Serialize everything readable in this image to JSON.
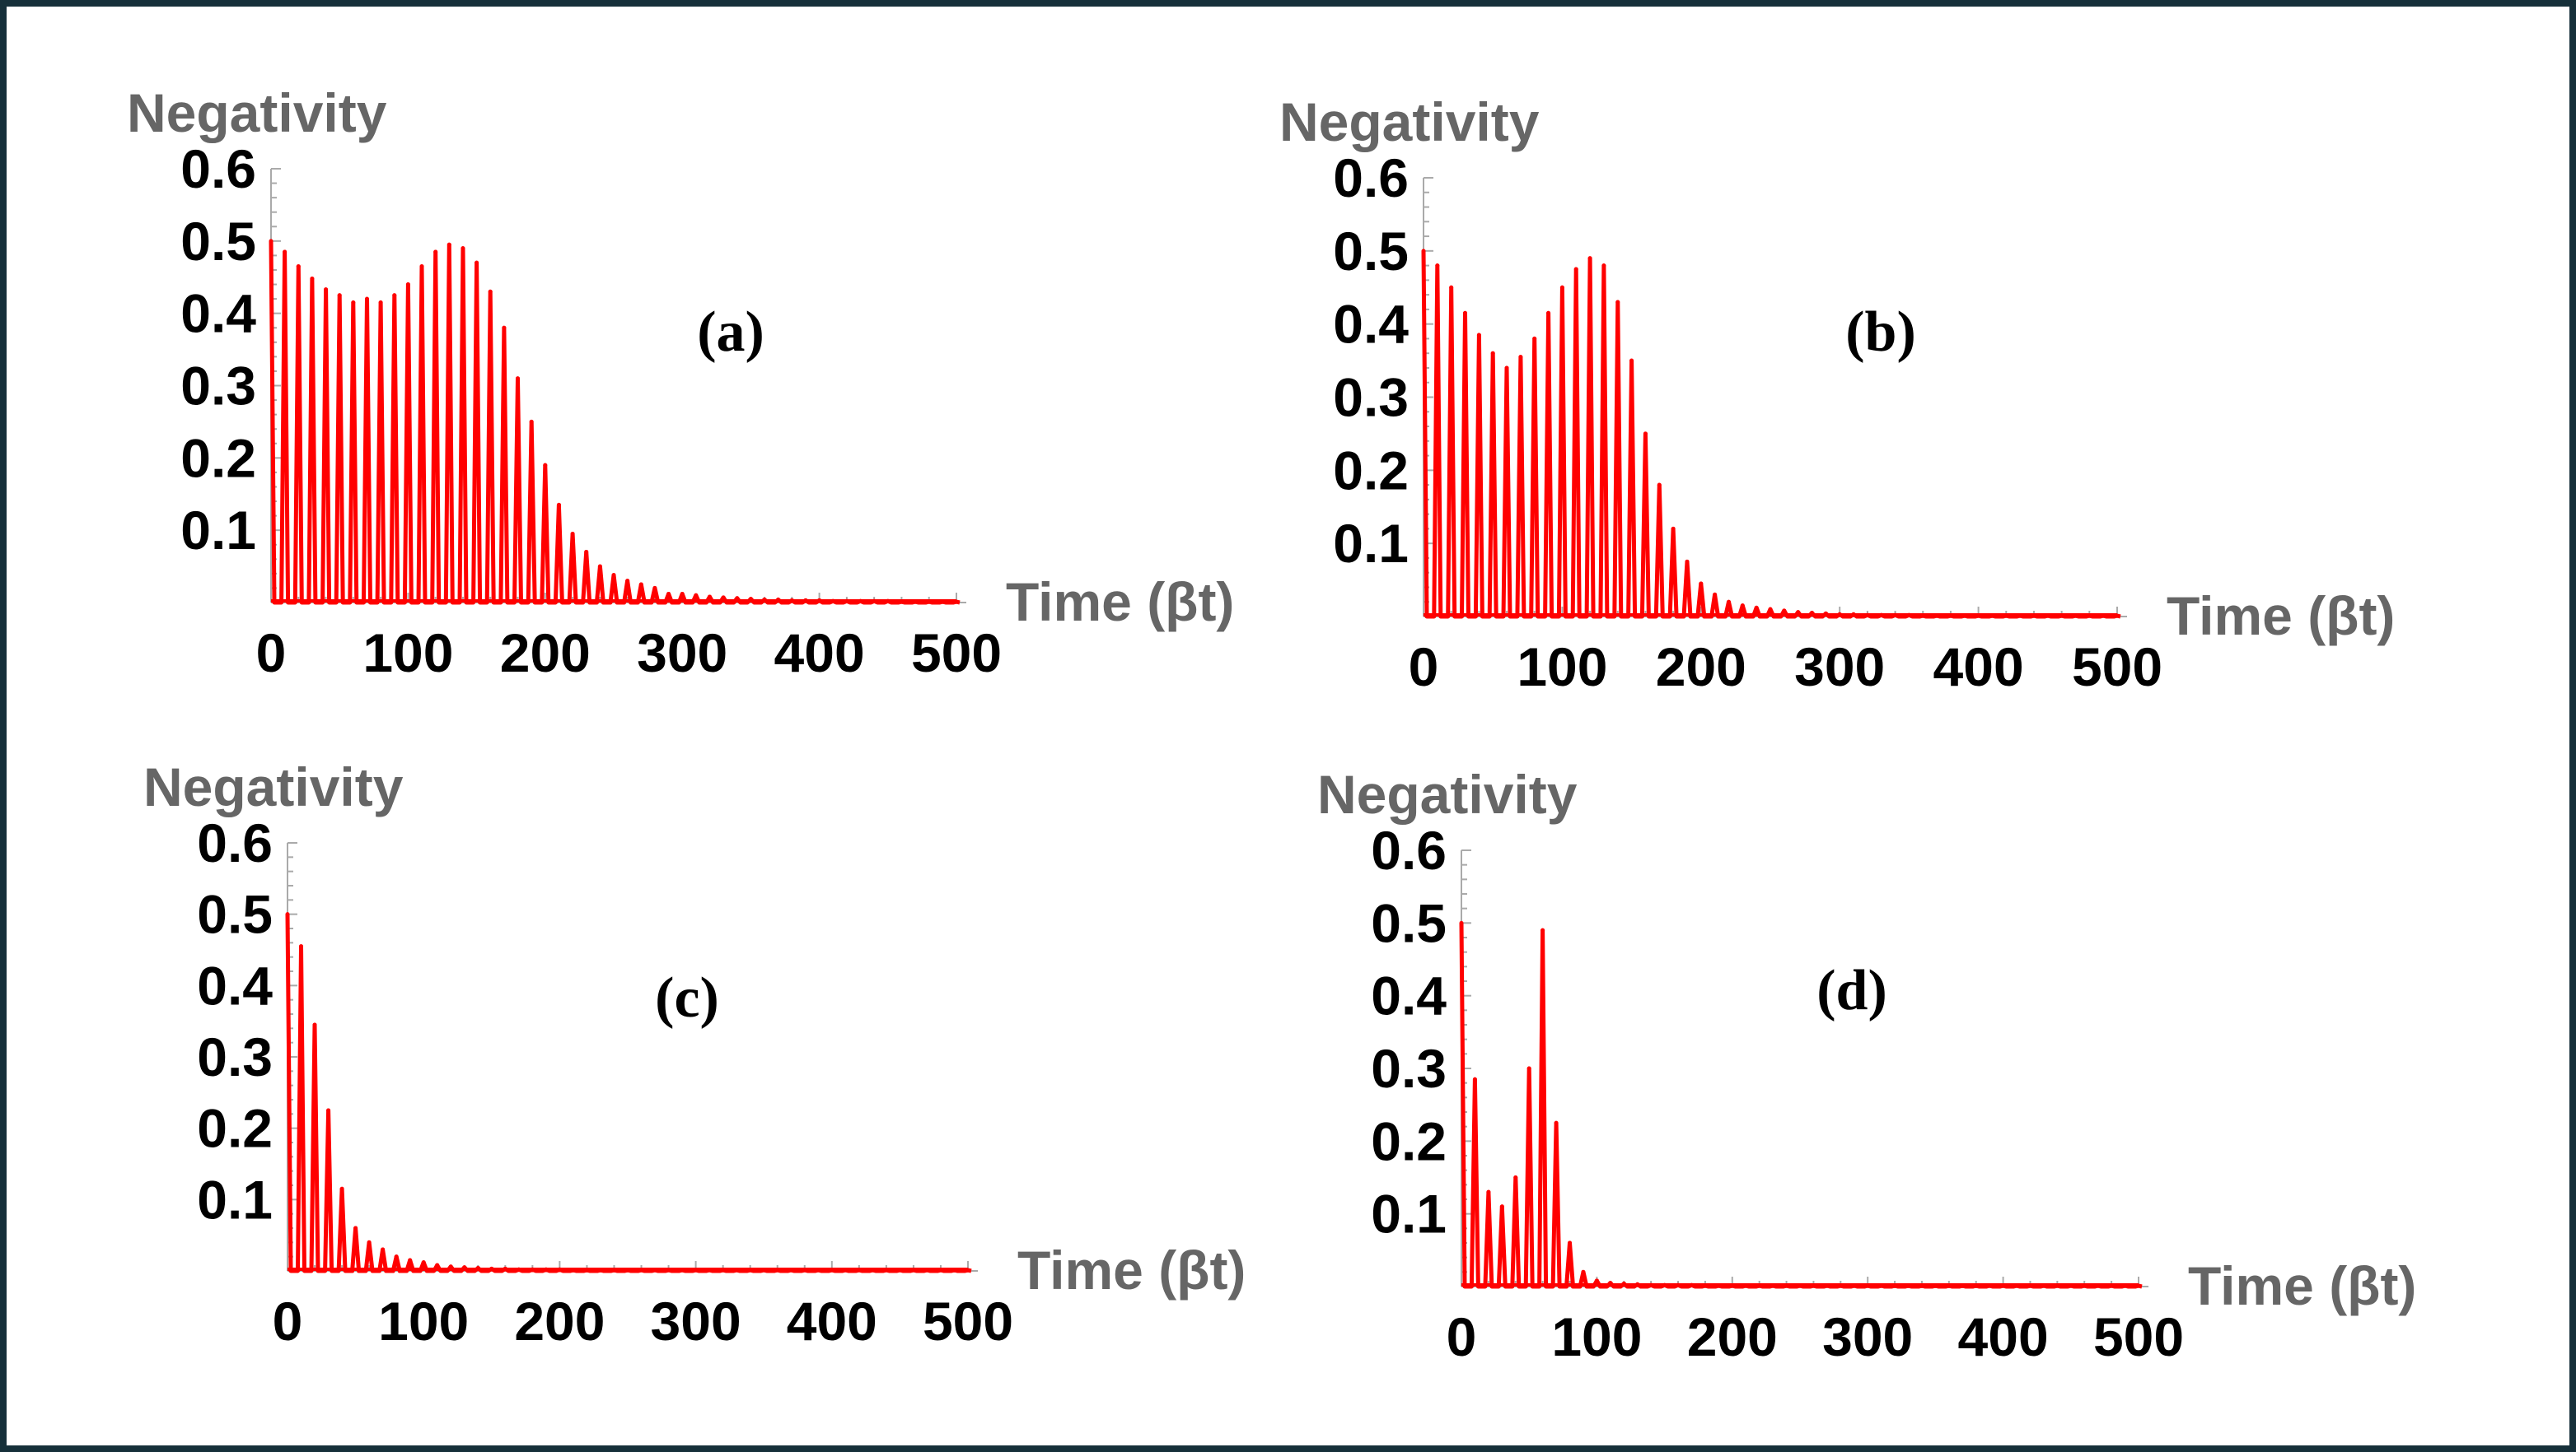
{
  "chart_data": [
    {
      "type": "line",
      "panel_label": "(a)",
      "ylabel": "Negativity",
      "xlabel": "Time (βt)",
      "xlim": [
        0,
        500
      ],
      "ylim": [
        0,
        0.6
      ],
      "xticks": [
        "0",
        "100",
        "200",
        "300",
        "400",
        "500"
      ],
      "yticks": [
        "0.1",
        "0.2",
        "0.3",
        "0.4",
        "0.5",
        "0.6"
      ],
      "grid": false,
      "color": "#ff0000",
      "series": [
        {
          "x": [
            0,
            10,
            20,
            30,
            40,
            50,
            60,
            70,
            80,
            90,
            100,
            110,
            120,
            130,
            140,
            150,
            160,
            170,
            180,
            190,
            200,
            210,
            220,
            230,
            240,
            250,
            260,
            270,
            280,
            290,
            300,
            310,
            320,
            330,
            340,
            350,
            360,
            370,
            380,
            390,
            400,
            410,
            420,
            430,
            440,
            450,
            460,
            470,
            480,
            490,
            500
          ],
          "y": [
            0.5,
            0.485,
            0.465,
            0.448,
            0.433,
            0.425,
            0.415,
            0.42,
            0.415,
            0.425,
            0.44,
            0.465,
            0.485,
            0.495,
            0.49,
            0.47,
            0.43,
            0.38,
            0.31,
            0.25,
            0.19,
            0.135,
            0.095,
            0.07,
            0.05,
            0.038,
            0.03,
            0.025,
            0.02,
            0.012,
            0.012,
            0.01,
            0.008,
            0.007,
            0.006,
            0.005,
            0.004,
            0.004,
            0.003,
            0.003,
            0.003,
            0.002,
            0.002,
            0.002,
            0.002,
            0.002,
            0.001,
            0.001,
            0.001,
            0.001,
            0.001
          ]
        }
      ]
    },
    {
      "type": "line",
      "panel_label": "(b)",
      "ylabel": "Negativity",
      "xlabel": "Time (βt)",
      "xlim": [
        0,
        500
      ],
      "ylim": [
        0,
        0.6
      ],
      "xticks": [
        "0",
        "100",
        "200",
        "300",
        "400",
        "500"
      ],
      "yticks": [
        "0.1",
        "0.2",
        "0.3",
        "0.4",
        "0.5",
        "0.6"
      ],
      "grid": false,
      "color": "#ff0000",
      "series": [
        {
          "x": [
            0,
            10,
            20,
            30,
            40,
            50,
            60,
            70,
            80,
            90,
            100,
            110,
            120,
            130,
            140,
            150,
            160,
            170,
            180,
            190,
            200,
            210,
            220,
            230,
            240,
            250,
            260,
            270,
            280,
            290,
            300,
            310,
            320,
            330,
            340,
            350,
            360,
            370,
            380,
            390,
            400,
            410,
            420,
            430,
            440,
            450,
            460,
            470,
            480,
            490,
            500
          ],
          "y": [
            0.5,
            0.48,
            0.45,
            0.415,
            0.385,
            0.36,
            0.34,
            0.355,
            0.38,
            0.415,
            0.45,
            0.475,
            0.49,
            0.48,
            0.43,
            0.35,
            0.25,
            0.18,
            0.12,
            0.075,
            0.045,
            0.03,
            0.02,
            0.015,
            0.012,
            0.01,
            0.008,
            0.006,
            0.005,
            0.004,
            0.003,
            0.003,
            0.002,
            0.002,
            0.002,
            0.002,
            0.001,
            0.001,
            0.001,
            0.001,
            0.001,
            0.001,
            0.001,
            0.001,
            0.001,
            0.001,
            0.001,
            0.001,
            0.001,
            0.001,
            0.001
          ]
        }
      ]
    },
    {
      "type": "line",
      "panel_label": "(c)",
      "ylabel": "Negativity",
      "xlabel": "Time (βt)",
      "xlim": [
        0,
        500
      ],
      "ylim": [
        0,
        0.6
      ],
      "xticks": [
        "0",
        "100",
        "200",
        "300",
        "400",
        "500"
      ],
      "yticks": [
        "0.1",
        "0.2",
        "0.3",
        "0.4",
        "0.5",
        "0.6"
      ],
      "grid": false,
      "color": "#ff0000",
      "series": [
        {
          "x": [
            0,
            10,
            20,
            30,
            40,
            50,
            60,
            70,
            80,
            90,
            100,
            110,
            120,
            130,
            140,
            150,
            160,
            170,
            180,
            190,
            200,
            210,
            220,
            230,
            240,
            250,
            260,
            270,
            280,
            290,
            300,
            310,
            320,
            330,
            340,
            350,
            360,
            370,
            380,
            390,
            400,
            410,
            420,
            430,
            440,
            450,
            460,
            470,
            480,
            490,
            500
          ],
          "y": [
            0.5,
            0.455,
            0.345,
            0.225,
            0.115,
            0.06,
            0.04,
            0.03,
            0.02,
            0.015,
            0.012,
            0.008,
            0.006,
            0.005,
            0.004,
            0.003,
            0.003,
            0.002,
            0.002,
            0.002,
            0.002,
            0.001,
            0.001,
            0.001,
            0.001,
            0.001,
            0.001,
            0.001,
            0.001,
            0.001,
            0.001,
            0.001,
            0.001,
            0.001,
            0.001,
            0.001,
            0.001,
            0.001,
            0.001,
            0.001,
            0.001,
            0.001,
            0.001,
            0.001,
            0.001,
            0.001,
            0.001,
            0.001,
            0.001,
            0.001,
            0.001
          ]
        }
      ]
    },
    {
      "type": "line",
      "panel_label": "(d)",
      "ylabel": "Negativity",
      "xlabel": "Time (βt)",
      "xlim": [
        0,
        500
      ],
      "ylim": [
        0,
        0.6
      ],
      "xticks": [
        "0",
        "100",
        "200",
        "300",
        "400",
        "500"
      ],
      "yticks": [
        "0.1",
        "0.2",
        "0.3",
        "0.4",
        "0.5",
        "0.6"
      ],
      "grid": false,
      "color": "#ff0000",
      "series": [
        {
          "x": [
            0,
            10,
            20,
            30,
            40,
            50,
            60,
            70,
            80,
            90,
            100,
            110,
            120,
            130,
            140,
            150,
            160,
            170,
            180,
            190,
            200,
            210,
            220,
            230,
            240,
            250,
            260,
            270,
            280,
            290,
            300,
            310,
            320,
            330,
            340,
            350,
            360,
            370,
            380,
            390,
            400,
            410,
            420,
            430,
            440,
            450,
            460,
            470,
            480,
            490,
            500
          ],
          "y": [
            0.5,
            0.285,
            0.13,
            0.11,
            0.15,
            0.3,
            0.49,
            0.225,
            0.06,
            0.02,
            0.008,
            0.005,
            0.004,
            0.003,
            0.002,
            0.002,
            0.002,
            0.002,
            0.001,
            0.001,
            0.001,
            0.001,
            0.001,
            0.001,
            0.001,
            0.001,
            0.001,
            0.001,
            0.001,
            0.001,
            0.001,
            0.001,
            0.001,
            0.001,
            0.001,
            0.001,
            0.001,
            0.001,
            0.001,
            0.001,
            0.001,
            0.001,
            0.001,
            0.001,
            0.001,
            0.001,
            0.001,
            0.001,
            0.001,
            0.001,
            0.001
          ]
        }
      ]
    }
  ]
}
